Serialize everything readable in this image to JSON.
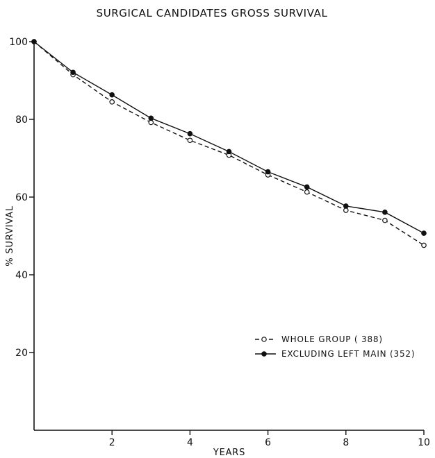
{
  "chart_data": {
    "type": "line",
    "title": "SURGICAL CANDIDATES GROSS SURVIVAL",
    "xlabel": "YEARS",
    "ylabel": "% SURVIVAL",
    "xlim": [
      0,
      10
    ],
    "ylim": [
      0,
      100
    ],
    "x_ticks": [
      "2",
      "4",
      "6",
      "8",
      "10"
    ],
    "y_ticks": [
      "20",
      "40",
      "60",
      "80",
      "100"
    ],
    "grid": false,
    "legend_position": "lower-right",
    "series": [
      {
        "name": "WHOLE GROUP ( 388)",
        "marker": "open-circle",
        "line_style": "dashed",
        "color": "#111111",
        "x": [
          0,
          1,
          2,
          3,
          4,
          5,
          6,
          7,
          8,
          9,
          10
        ],
        "y": [
          100,
          91.5,
          84.5,
          79.2,
          74.6,
          70.8,
          65.7,
          61.3,
          56.6,
          54,
          47.6
        ]
      },
      {
        "name": "EXCLUDING LEFT MAIN (352)",
        "marker": "filled-circle",
        "line_style": "solid",
        "color": "#111111",
        "x": [
          0,
          1,
          2,
          3,
          4,
          5,
          6,
          7,
          8,
          9,
          10
        ],
        "y": [
          100,
          92.1,
          86.3,
          80.3,
          76.3,
          71.7,
          66.5,
          62.6,
          57.7,
          56.1,
          50.7
        ]
      }
    ]
  }
}
